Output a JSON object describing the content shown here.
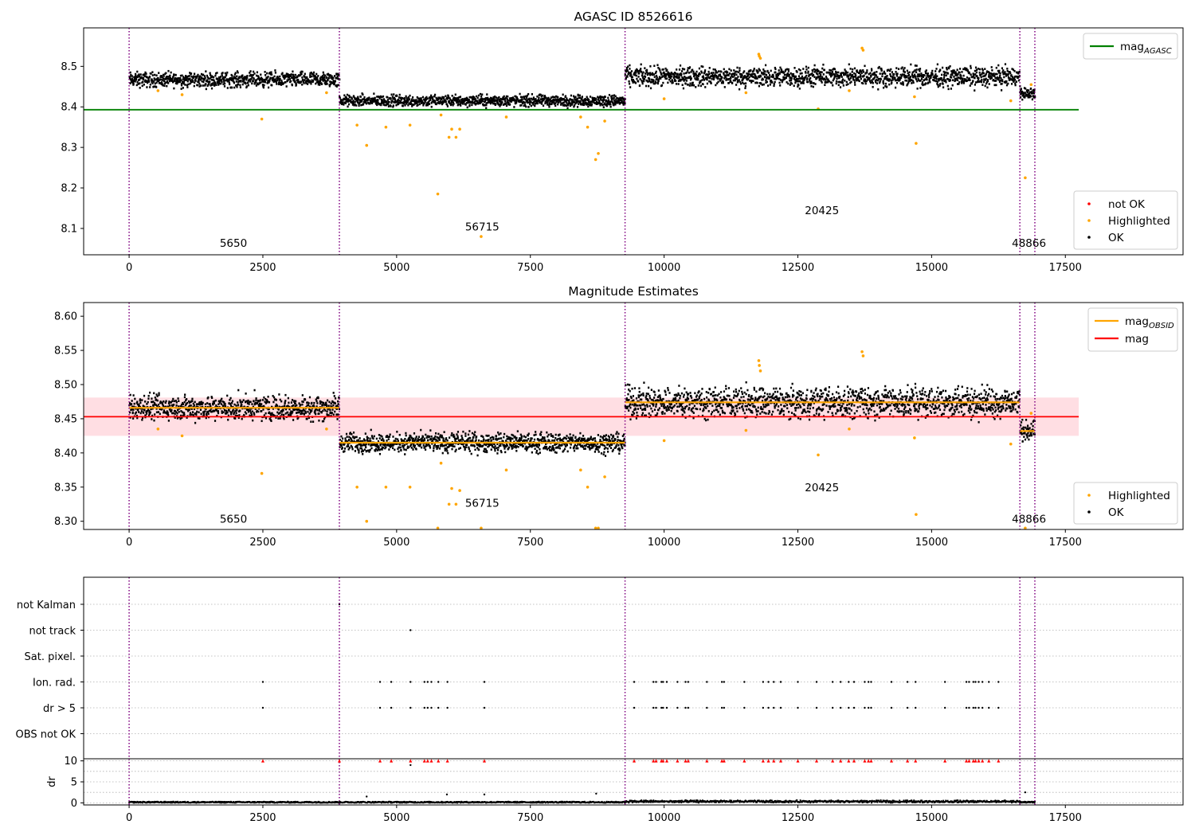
{
  "chart_data": [
    {
      "type": "scatter",
      "title": "AGASC ID 8526616",
      "xlim": [
        -850,
        19700
      ],
      "ylim": [
        8.035,
        8.595
      ],
      "xticks": [
        0,
        2500,
        5000,
        7500,
        10000,
        12500,
        15000,
        17500
      ],
      "yticks": [
        8.1,
        8.2,
        8.3,
        8.4,
        8.5
      ],
      "obsid_boundaries": [
        0,
        3930,
        9270,
        16650,
        16930
      ],
      "obsid_labels": [
        {
          "text": "5650",
          "x": 1950,
          "y": 8.055
        },
        {
          "text": "56715",
          "x": 6600,
          "y": 8.095
        },
        {
          "text": "20425",
          "x": 12950,
          "y": 8.135
        },
        {
          "text": "48866",
          "x": 16820,
          "y": 8.055
        }
      ],
      "segments": [
        {
          "x0": 0,
          "x1": 3930,
          "mean": 8.467,
          "spread": 0.009
        },
        {
          "x0": 3930,
          "x1": 9270,
          "mean": 8.415,
          "spread": 0.007
        },
        {
          "x0": 9270,
          "x1": 16650,
          "mean": 8.474,
          "spread": 0.012
        },
        {
          "x0": 16650,
          "x1": 16930,
          "mean": 8.432,
          "spread": 0.007
        }
      ],
      "mag_agasc": {
        "value": 8.393,
        "x0": -850,
        "x1": 17750
      },
      "highlighted_points": [
        [
          540,
          8.44
        ],
        [
          990,
          8.43
        ],
        [
          2480,
          8.37
        ],
        [
          3690,
          8.435
        ],
        [
          4260,
          8.355
        ],
        [
          4440,
          8.305
        ],
        [
          4800,
          8.35
        ],
        [
          5250,
          8.355
        ],
        [
          5770,
          8.185
        ],
        [
          5830,
          8.38
        ],
        [
          5980,
          8.325
        ],
        [
          6030,
          8.345
        ],
        [
          6110,
          8.325
        ],
        [
          6180,
          8.345
        ],
        [
          6580,
          8.08
        ],
        [
          7050,
          8.375
        ],
        [
          8440,
          8.375
        ],
        [
          8570,
          8.35
        ],
        [
          8720,
          8.27
        ],
        [
          8770,
          8.285
        ],
        [
          8890,
          8.365
        ],
        [
          10000,
          8.42
        ],
        [
          11530,
          8.435
        ],
        [
          11770,
          8.53
        ],
        [
          11780,
          8.525
        ],
        [
          11800,
          8.52
        ],
        [
          12880,
          8.395
        ],
        [
          13460,
          8.44
        ],
        [
          13700,
          8.545
        ],
        [
          13720,
          8.54
        ],
        [
          14680,
          8.425
        ],
        [
          14710,
          8.31
        ],
        [
          16480,
          8.415
        ],
        [
          16750,
          8.225
        ],
        [
          16860,
          8.455
        ]
      ],
      "legend": {
        "upper": [
          {
            "label": "mag",
            "sub": "AGASC",
            "color": "#008000"
          }
        ],
        "lower": [
          {
            "label": "not OK",
            "color": "#ff0000"
          },
          {
            "label": "Highlighted",
            "color": "#ffa500"
          },
          {
            "label": "OK",
            "color": "#000000"
          }
        ]
      }
    },
    {
      "type": "scatter",
      "title": "Magnitude Estimates",
      "xlim": [
        -850,
        19700
      ],
      "ylim": [
        8.288,
        8.62
      ],
      "xticks": [
        0,
        2500,
        5000,
        7500,
        10000,
        12500,
        15000,
        17500
      ],
      "yticks": [
        8.3,
        8.35,
        8.4,
        8.45,
        8.5,
        8.55,
        8.6
      ],
      "obsid_boundaries": [
        0,
        3930,
        9270,
        16650,
        16930
      ],
      "obsid_labels": [
        {
          "text": "5650",
          "x": 1950,
          "y": 8.298
        },
        {
          "text": "56715",
          "x": 6600,
          "y": 8.321
        },
        {
          "text": "20425",
          "x": 12950,
          "y": 8.344
        },
        {
          "text": "48866",
          "x": 16820,
          "y": 8.298
        }
      ],
      "segments": [
        {
          "x0": 0,
          "x1": 3930,
          "mean": 8.466,
          "spread": 0.009
        },
        {
          "x0": 3930,
          "x1": 9270,
          "mean": 8.415,
          "spread": 0.007
        },
        {
          "x0": 9270,
          "x1": 16650,
          "mean": 8.474,
          "spread": 0.011
        },
        {
          "x0": 16650,
          "x1": 16930,
          "mean": 8.432,
          "spread": 0.007
        }
      ],
      "mag": {
        "value": 8.453,
        "band": [
          8.425,
          8.481
        ],
        "x0": -850,
        "x1": 17750
      },
      "highlighted_points": [
        [
          540,
          8.435
        ],
        [
          990,
          8.425
        ],
        [
          2480,
          8.37
        ],
        [
          3690,
          8.435
        ],
        [
          4260,
          8.35
        ],
        [
          4440,
          8.3
        ],
        [
          4800,
          8.35
        ],
        [
          5250,
          8.35
        ],
        [
          5770,
          8.29
        ],
        [
          5830,
          8.385
        ],
        [
          5980,
          8.325
        ],
        [
          6030,
          8.348
        ],
        [
          6110,
          8.325
        ],
        [
          6180,
          8.345
        ],
        [
          6580,
          8.29
        ],
        [
          7050,
          8.375
        ],
        [
          8440,
          8.375
        ],
        [
          8570,
          8.35
        ],
        [
          8720,
          8.29
        ],
        [
          8770,
          8.29
        ],
        [
          8890,
          8.365
        ],
        [
          10000,
          8.418
        ],
        [
          11530,
          8.433
        ],
        [
          11770,
          8.535
        ],
        [
          11780,
          8.528
        ],
        [
          11800,
          8.52
        ],
        [
          12880,
          8.397
        ],
        [
          13460,
          8.435
        ],
        [
          13700,
          8.548
        ],
        [
          13720,
          8.542
        ],
        [
          14680,
          8.422
        ],
        [
          14710,
          8.31
        ],
        [
          16480,
          8.413
        ],
        [
          16750,
          8.29
        ],
        [
          16860,
          8.458
        ]
      ],
      "legend": {
        "upper": [
          {
            "label": "mag",
            "sub": "OBSID",
            "color": "#ffa500"
          },
          {
            "label": "mag",
            "sub": "",
            "color": "#ff0000"
          }
        ],
        "lower": [
          {
            "label": "Highlighted",
            "color": "#ffa500"
          },
          {
            "label": "OK",
            "color": "#000000"
          }
        ]
      }
    },
    {
      "type": "scatter",
      "xlim": [
        -850,
        19700
      ],
      "xticks": [
        0,
        2500,
        5000,
        7500,
        10000,
        12500,
        15000,
        17500
      ],
      "obsid_boundaries": [
        0,
        3930,
        9270,
        16650,
        16930
      ],
      "flag_rows": [
        "not Kalman",
        "not track",
        "Sat. pixel.",
        "Ion. rad.",
        "dr > 5",
        "OBS not OK"
      ],
      "flag_points": {
        "not Kalman": [
          3930
        ],
        "not track": [
          5260
        ],
        "Sat. pixel.": [],
        "Ion. rad.": [
          2500,
          4690,
          4900,
          5260,
          5520,
          5580,
          5650,
          5780,
          5950,
          6640,
          9440,
          9800,
          9850,
          9950,
          9980,
          10050,
          10250,
          10400,
          10450,
          10800,
          11080,
          11120,
          11500,
          11850,
          11950,
          12050,
          12180,
          12500,
          12850,
          13150,
          13300,
          13450,
          13550,
          13750,
          13820,
          13870,
          14250,
          14550,
          14700,
          15250,
          15650,
          15700,
          15780,
          15820,
          15880,
          15950,
          16070,
          16250
        ],
        "dr > 5": [
          2500,
          4690,
          4900,
          5260,
          5520,
          5580,
          5650,
          5780,
          5950,
          6640,
          9440,
          9800,
          9850,
          9950,
          9980,
          10050,
          10250,
          10400,
          10450,
          10800,
          11080,
          11120,
          11500,
          11850,
          11950,
          12050,
          12180,
          12500,
          12850,
          13150,
          13300,
          13450,
          13550,
          13750,
          13820,
          13870,
          14250,
          14550,
          14700,
          15250,
          15650,
          15700,
          15780,
          15820,
          15880,
          15950,
          16070,
          16250
        ],
        "OBS not OK": []
      },
      "dr": {
        "ylabel": "dr",
        "yticks": [
          0,
          5,
          10
        ],
        "ylim": [
          -0.5,
          10.5
        ],
        "capped_value": 10,
        "capped_x": [
          2500,
          3930,
          4690,
          4900,
          5260,
          5520,
          5580,
          5650,
          5780,
          5950,
          6640,
          9440,
          9800,
          9850,
          9950,
          9980,
          10050,
          10250,
          10400,
          10450,
          10800,
          11080,
          11120,
          11500,
          11850,
          11950,
          12050,
          12180,
          12500,
          12850,
          13150,
          13300,
          13450,
          13550,
          13750,
          13820,
          13870,
          14250,
          14550,
          14700,
          15250,
          15650,
          15700,
          15780,
          15820,
          15880,
          15950,
          16070,
          16250
        ],
        "outliers": [
          [
            5260,
            9
          ],
          [
            4440,
            1.5
          ],
          [
            5940,
            2.0
          ],
          [
            6640,
            2.0
          ],
          [
            8730,
            2.2
          ],
          [
            16750,
            2.5
          ]
        ]
      }
    }
  ]
}
